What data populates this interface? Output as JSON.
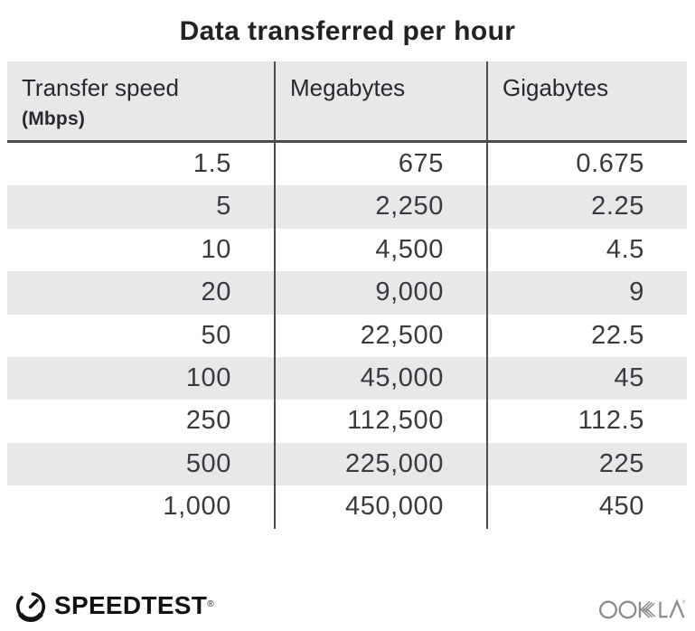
{
  "title": "Data transferred per hour",
  "table": {
    "columns": [
      {
        "label": "Transfer speed",
        "sublabel": "(Mbps)"
      },
      {
        "label": "Megabytes"
      },
      {
        "label": "Gigabytes"
      }
    ],
    "rows": [
      [
        "1.5",
        "675",
        "0.675"
      ],
      [
        "5",
        "2,250",
        "2.25"
      ],
      [
        "10",
        "4,500",
        "4.5"
      ],
      [
        "20",
        "9,000",
        "9"
      ],
      [
        "50",
        "22,500",
        "22.5"
      ],
      [
        "100",
        "45,000",
        "45"
      ],
      [
        "250",
        "112,500",
        "112.5"
      ],
      [
        "500",
        "225,000",
        "225"
      ],
      [
        "1,000",
        "450,000",
        "450"
      ]
    ]
  },
  "footer": {
    "speedtest_label": "SPEEDTEST",
    "speedtest_trademark": "®",
    "ookla_label": "OOKLA",
    "ookla_trademark": "®"
  },
  "colors": {
    "header_bg": "#e8e7ea",
    "row_alt_bg": "#e8e7ea",
    "divider": "#4c4b50",
    "title_text": "#222226",
    "body_text": "#3a3a3e",
    "speedtest_black": "#121212",
    "ookla_gray": "#8b8b8b"
  },
  "chart_data": {
    "type": "table",
    "title": "Data transferred per hour",
    "columns": [
      "Transfer speed (Mbps)",
      "Megabytes",
      "Gigabytes"
    ],
    "rows": [
      [
        1.5,
        675,
        0.675
      ],
      [
        5,
        2250,
        2.25
      ],
      [
        10,
        4500,
        4.5
      ],
      [
        20,
        9000,
        9
      ],
      [
        50,
        22500,
        22.5
      ],
      [
        100,
        45000,
        45
      ],
      [
        250,
        112500,
        112.5
      ],
      [
        500,
        225000,
        225
      ],
      [
        1000,
        450000,
        450
      ]
    ]
  }
}
